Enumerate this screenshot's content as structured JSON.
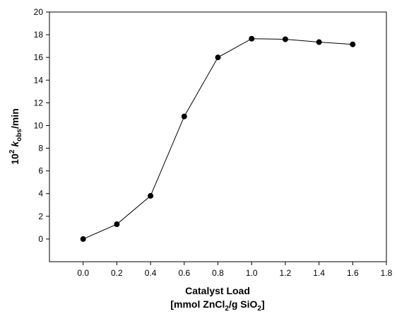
{
  "chart_data": {
    "type": "line",
    "title": "",
    "xlabel": "Catalyst Load",
    "xlabel_line2": {
      "prefix": "[mmol ZnCl",
      "sub1": "2",
      "mid": "/g SiO",
      "sub2": "2",
      "suffix": "]"
    },
    "ylabel": {
      "base": "10",
      "exp": "2",
      "symbol": "k",
      "sub": "obs",
      "suffix": "/min"
    },
    "xlim": [
      -0.2,
      1.8
    ],
    "ylim": [
      -2,
      20
    ],
    "xticks": [
      "0.0",
      "0.2",
      "0.4",
      "0.6",
      "0.8",
      "1.0",
      "1.2",
      "1.4",
      "1.6",
      "1.8"
    ],
    "yticks": [
      "0",
      "2",
      "4",
      "6",
      "8",
      "10",
      "12",
      "14",
      "16",
      "18",
      "20"
    ],
    "grid": false,
    "legend": "none",
    "series": [
      {
        "x": [
          0.0,
          0.2,
          0.4,
          0.6,
          0.8,
          1.0,
          1.2,
          1.4,
          1.6
        ],
        "y": [
          0.0,
          1.3,
          3.8,
          10.8,
          16.0,
          17.65,
          17.6,
          17.35,
          17.15
        ]
      }
    ]
  }
}
